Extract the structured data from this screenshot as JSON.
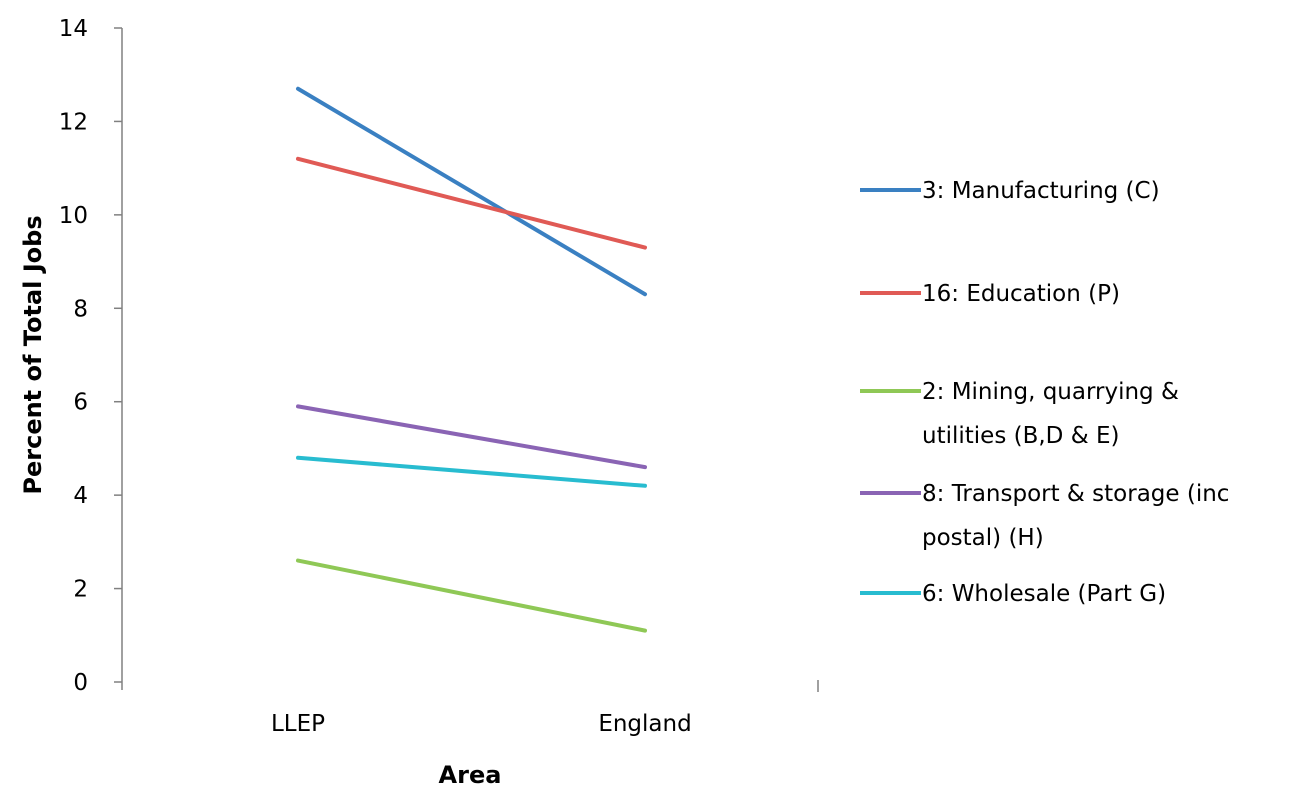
{
  "chart_data": {
    "type": "line",
    "title": "",
    "xlabel": "Area",
    "ylabel": "Percent of Total Jobs",
    "categories": [
      "LLEP",
      "England"
    ],
    "ylim": [
      0,
      14
    ],
    "yticks": [
      0,
      2,
      4,
      6,
      8,
      10,
      12,
      14
    ],
    "grid": false,
    "legend_position": "right",
    "series": [
      {
        "name": "3: Manufacturing (C)",
        "legend_lines": [
          "3: Manufacturing (C)"
        ],
        "color": "#3a80c2",
        "values": [
          12.7,
          8.3
        ]
      },
      {
        "name": "16: Education (P)",
        "legend_lines": [
          "16: Education (P)"
        ],
        "color": "#e05a55",
        "values": [
          11.2,
          9.3
        ]
      },
      {
        "name": "2: Mining, quarrying & utilities (B,D & E)",
        "legend_lines": [
          "2: Mining, quarrying &",
          "utilities (B,D & E)"
        ],
        "color": "#8fc856",
        "values": [
          2.6,
          1.1
        ]
      },
      {
        "name": "8: Transport & storage (inc postal) (H)",
        "legend_lines": [
          "8: Transport & storage (inc",
          "postal) (H)"
        ],
        "color": "#8a64b4",
        "values": [
          5.9,
          4.6
        ]
      },
      {
        "name": "6: Wholesale (Part G)",
        "legend_lines": [
          "6: Wholesale (Part G)"
        ],
        "color": "#28bcd0",
        "values": [
          4.8,
          4.2
        ]
      }
    ]
  }
}
